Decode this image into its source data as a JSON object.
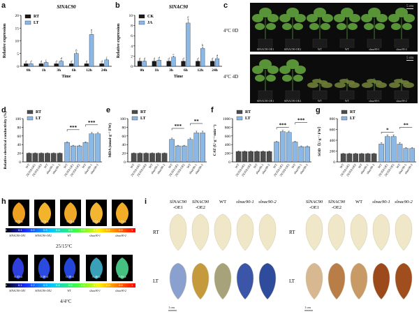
{
  "panel_labels": [
    "a",
    "b",
    "c",
    "d",
    "e",
    "f",
    "g",
    "h",
    "i"
  ],
  "chart_data": [
    {
      "id": "a",
      "type": "bar",
      "title": "SlNAC90",
      "categories": [
        "0h",
        "1h",
        "3h",
        "6h",
        "12h",
        "24h"
      ],
      "series": [
        {
          "name": "RT",
          "color": "#1a1a1a",
          "values": [
            1.0,
            1.0,
            1.0,
            1.0,
            1.0,
            1.0
          ],
          "err": [
            0.1,
            0.1,
            0.1,
            0.1,
            0.1,
            0.1
          ],
          "letters": [
            "d",
            "d",
            "d",
            "d",
            "d",
            "d"
          ]
        },
        {
          "name": "LT",
          "color": "#8cb8e6",
          "values": [
            1.0,
            1.5,
            2.0,
            5.0,
            12.5,
            2.5
          ],
          "err": [
            0.1,
            0.2,
            0.3,
            0.5,
            1.0,
            0.3
          ],
          "letters": [
            "d",
            "c",
            "d",
            "b",
            "a",
            "c"
          ]
        }
      ],
      "ylim": [
        0,
        20
      ],
      "yticks": [
        0,
        5,
        10,
        15,
        20
      ],
      "ylabel": "Relative expression",
      "xlabel": "Time"
    },
    {
      "id": "b",
      "type": "bar",
      "title": "SlNAC90",
      "categories": [
        "0h",
        "1h",
        "3h",
        "6h",
        "12h",
        "24h"
      ],
      "series": [
        {
          "name": "CK",
          "color": "#1a1a1a",
          "values": [
            1.0,
            1.0,
            1.0,
            1.0,
            1.0,
            1.0
          ],
          "err": [
            0.1,
            0.1,
            0.1,
            0.1,
            0.1,
            0.1
          ],
          "letters": [
            "d",
            "d",
            "d",
            "d",
            "d",
            "d"
          ]
        },
        {
          "name": "JA",
          "color": "#8cb8e6",
          "values": [
            1.0,
            1.2,
            1.8,
            8.5,
            3.5,
            1.5
          ],
          "err": [
            0.1,
            0.1,
            0.2,
            0.8,
            0.3,
            0.2
          ],
          "letters": [
            "d",
            "d",
            "c",
            "a",
            "b",
            "d"
          ]
        }
      ],
      "ylim": [
        0,
        10
      ],
      "yticks": [
        0,
        2,
        4,
        6,
        8,
        10
      ],
      "ylabel": "Relative expression",
      "xlabel": "Time"
    },
    {
      "id": "d",
      "type": "bar",
      "categories": [
        "WT",
        "2X35S:OE1",
        "2X35S:OE2",
        "WT",
        "slnac90-1",
        "slnac90-2"
      ],
      "series": [
        {
          "name": "RT",
          "color": "#4d4d4d",
          "values": [
            20,
            20,
            20,
            20,
            20,
            20
          ],
          "err": [
            1,
            1,
            1,
            1,
            1,
            1
          ]
        },
        {
          "name": "LT",
          "color": "#8cb8e6",
          "values": [
            45,
            37,
            37,
            45,
            65,
            65
          ],
          "err": [
            1.5,
            1.5,
            1.5,
            1.5,
            3,
            3
          ]
        }
      ],
      "ylim": [
        0,
        100
      ],
      "yticks": [
        0,
        20,
        40,
        60,
        80,
        100
      ],
      "ylabel": "Relative electrical conductivity (%)",
      "sig": [
        "***",
        "***"
      ]
    },
    {
      "id": "e",
      "type": "bar",
      "categories": [
        "WT",
        "2X35S:OE1",
        "2X35S:OE2",
        "WT",
        "slnac90-1",
        "slnac90-2"
      ],
      "series": [
        {
          "name": "RT",
          "color": "#4d4d4d",
          "values": [
            20,
            20,
            20,
            20,
            20,
            20
          ],
          "err": [
            1,
            1,
            1,
            1,
            1,
            1
          ]
        },
        {
          "name": "LT",
          "color": "#8cb8e6",
          "values": [
            52,
            37,
            37,
            52,
            67,
            67
          ],
          "err": [
            3,
            1.5,
            1.5,
            3,
            4,
            4
          ]
        }
      ],
      "ylim": [
        0,
        100
      ],
      "yticks": [
        0,
        20,
        40,
        60,
        80,
        100
      ],
      "ylabel": "MDA (nmol·g⁻¹ FW)",
      "sig": [
        "***",
        "**"
      ]
    },
    {
      "id": "f",
      "type": "bar",
      "categories": [
        "WT",
        "2X35S:OE1",
        "2X35S:OE2",
        "WT",
        "slnac90-1",
        "slnac90-2"
      ],
      "series": [
        {
          "name": "RT",
          "color": "#4d4d4d",
          "values": [
            240,
            240,
            240,
            240,
            240,
            240
          ],
          "err": [
            15,
            15,
            15,
            15,
            15,
            15
          ]
        },
        {
          "name": "LT",
          "color": "#8cb8e6",
          "values": [
            460,
            700,
            680,
            460,
            350,
            350
          ],
          "err": [
            15,
            30,
            30,
            15,
            20,
            20
          ]
        }
      ],
      "ylim": [
        0,
        1000
      ],
      "yticks": [
        0,
        200,
        400,
        600,
        800,
        1000
      ],
      "ylabel": "CAT (U·g⁻¹·min⁻¹)",
      "sig": [
        "***",
        "***"
      ]
    },
    {
      "id": "g",
      "type": "bar",
      "categories": [
        "WT",
        "2X35S:OE1",
        "2X35S:OE2",
        "WT",
        "slnac90-1",
        "slnac90-2"
      ],
      "series": [
        {
          "name": "RT",
          "color": "#4d4d4d",
          "values": [
            150,
            150,
            150,
            150,
            150,
            150
          ],
          "err": [
            8,
            8,
            8,
            8,
            8,
            8
          ]
        },
        {
          "name": "LT",
          "color": "#8cb8e6",
          "values": [
            330,
            470,
            470,
            330,
            250,
            250
          ],
          "err": [
            25,
            30,
            30,
            25,
            15,
            15
          ]
        }
      ],
      "ylim": [
        0,
        800
      ],
      "yticks": [
        0,
        200,
        400,
        600,
        800
      ],
      "ylabel": "SOD（U·g⁻¹ FW）",
      "sig": [
        "*",
        "**"
      ]
    }
  ],
  "panel_c": {
    "row_labels": [
      "4°C 0D",
      "4°C 4D"
    ],
    "plants": [
      "SlNAC90-OE1",
      "SlNAC90-OE2",
      "WT",
      "WT",
      "slnac90-1",
      "slnac90-2"
    ],
    "scale": "5 cm"
  },
  "panel_h": {
    "scale_ticks": [
      "0",
      "0.1",
      "0.2",
      "0.3",
      "0.4",
      "0.5",
      "0.6",
      "0.7",
      "0.8",
      "0.9",
      "1"
    ],
    "row1": {
      "values": [
        "0.73 a",
        "0.74 a",
        "0.74 a",
        "0.74 a",
        "0.73 a"
      ],
      "label": "25/15°C"
    },
    "row2": {
      "values": [
        "0.33 d",
        "0.38 d",
        "0.38 d",
        "0.46 b",
        "0.55 a"
      ],
      "label": "4/4°C"
    },
    "lines": [
      "SlNAC90-OE1",
      "SlNAC90-OE2",
      "WT",
      "slnac90-1",
      "slnac90-2"
    ]
  },
  "panel_i": {
    "headers": [
      "SlNAC90 -OE1",
      "SlNAC90 -OE2",
      "WT",
      "slnac90-1",
      "slnac90-2"
    ],
    "rows": [
      "RT",
      "LT"
    ],
    "scale": "1 cm"
  }
}
